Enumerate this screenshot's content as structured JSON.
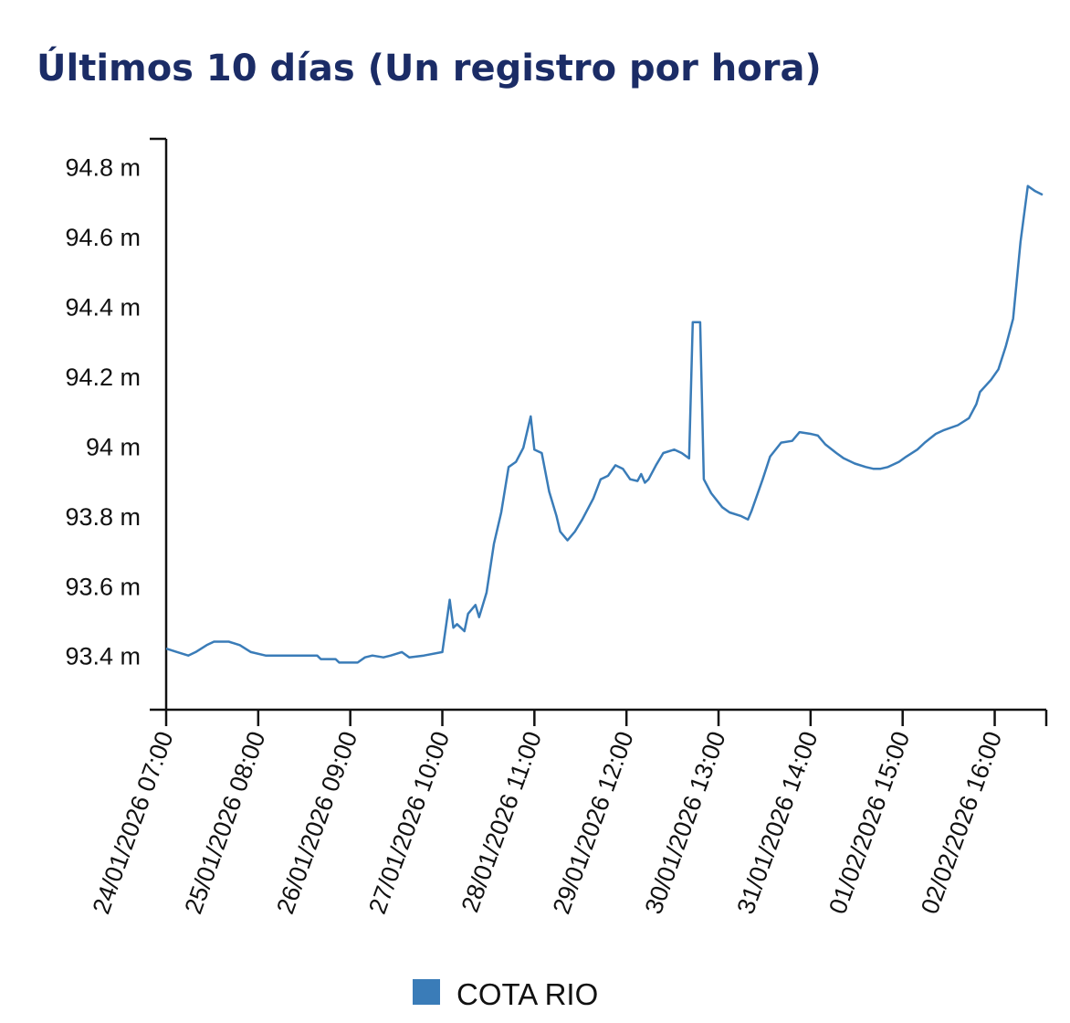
{
  "chart_data": {
    "type": "line",
    "title": "Últimos 10 días (Un registro por hora)",
    "x": [
      "24/01/2026 07:00",
      "24/01/2026 10:00",
      "24/01/2026 13:00",
      "24/01/2026 15:00",
      "24/01/2026 18:00",
      "24/01/2026 20:00",
      "25/01/2026 00:00",
      "25/01/2026 03:00",
      "25/01/2026 06:00",
      "25/01/2026 10:00",
      "25/01/2026 17:00",
      "26/01/2026 00:00",
      "26/01/2026 01:00",
      "26/01/2026 05:00",
      "26/01/2026 06:00",
      "26/01/2026 11:00",
      "26/01/2026 13:00",
      "26/01/2026 15:00",
      "26/01/2026 18:00",
      "26/01/2026 20:00",
      "26/01/2026 23:00",
      "27/01/2026 01:00",
      "27/01/2026 05:00",
      "27/01/2026 10:00",
      "27/01/2026 12:00",
      "27/01/2026 13:00",
      "27/01/2026 14:00",
      "27/01/2026 16:00",
      "27/01/2026 17:00",
      "27/01/2026 19:00",
      "27/01/2026 20:00",
      "27/01/2026 22:00",
      "28/01/2026 00:00",
      "28/01/2026 02:00",
      "28/01/2026 04:00",
      "28/01/2026 06:00",
      "28/01/2026 08:00",
      "28/01/2026 10:00",
      "28/01/2026 11:00",
      "28/01/2026 13:00",
      "28/01/2026 15:00",
      "28/01/2026 17:00",
      "28/01/2026 18:00",
      "28/01/2026 20:00",
      "28/01/2026 22:00",
      "29/01/2026 00:00",
      "29/01/2026 03:00",
      "29/01/2026 05:00",
      "29/01/2026 07:00",
      "29/01/2026 09:00",
      "29/01/2026 11:00",
      "29/01/2026 13:00",
      "29/01/2026 15:00",
      "29/01/2026 16:00",
      "29/01/2026 17:00",
      "29/01/2026 18:00",
      "29/01/2026 20:00",
      "29/01/2026 22:00",
      "30/01/2026 01:00",
      "30/01/2026 03:00",
      "30/01/2026 05:00",
      "30/01/2026 06:00",
      "30/01/2026 08:00",
      "30/01/2026 09:00",
      "30/01/2026 11:00",
      "30/01/2026 14:00",
      "30/01/2026 16:00",
      "30/01/2026 19:00",
      "30/01/2026 21:00",
      "30/01/2026 22:00",
      "31/01/2026 01:00",
      "31/01/2026 03:00",
      "31/01/2026 06:00",
      "31/01/2026 09:00",
      "31/01/2026 11:00",
      "31/01/2026 14:00",
      "31/01/2026 16:00",
      "31/01/2026 18:00",
      "31/01/2026 21:00",
      "31/01/2026 23:00",
      "01/02/2026 02:00",
      "01/02/2026 05:00",
      "01/02/2026 07:00",
      "01/02/2026 09:00",
      "01/02/2026 11:00",
      "01/02/2026 14:00",
      "01/02/2026 16:00",
      "01/02/2026 19:00",
      "01/02/2026 21:00",
      "02/02/2026 00:00",
      "02/02/2026 02:00",
      "02/02/2026 06:00",
      "02/02/2026 09:00",
      "02/02/2026 11:00",
      "02/02/2026 12:00",
      "02/02/2026 15:00",
      "02/02/2026 17:00",
      "02/02/2026 19:00",
      "02/02/2026 21:00",
      "02/02/2026 23:00",
      "03/02/2026 01:00",
      "03/02/2026 03:00",
      "03/02/2026 05:00"
    ],
    "series": [
      {
        "name": "COTA RIO",
        "color": "#3a7cb8",
        "values": [
          93.42,
          93.41,
          93.4,
          93.41,
          93.43,
          93.44,
          93.44,
          93.43,
          93.41,
          93.4,
          93.4,
          93.4,
          93.39,
          93.39,
          93.38,
          93.38,
          93.395,
          93.4,
          93.395,
          93.4,
          93.41,
          93.395,
          93.4,
          93.41,
          93.56,
          93.48,
          93.49,
          93.47,
          93.52,
          93.545,
          93.51,
          93.58,
          93.72,
          93.81,
          93.94,
          93.955,
          93.995,
          94.085,
          93.99,
          93.98,
          93.87,
          93.8,
          93.755,
          93.73,
          93.755,
          93.79,
          93.85,
          93.905,
          93.915,
          93.945,
          93.935,
          93.905,
          93.9,
          93.92,
          93.895,
          93.905,
          93.945,
          93.98,
          93.99,
          93.98,
          93.965,
          94.355,
          94.355,
          93.905,
          93.865,
          93.825,
          93.81,
          93.8,
          93.79,
          93.815,
          93.905,
          93.97,
          94.01,
          94.015,
          94.04,
          94.035,
          94.03,
          94.005,
          93.98,
          93.965,
          93.95,
          93.94,
          93.935,
          93.935,
          93.94,
          93.955,
          93.97,
          93.99,
          94.01,
          94.035,
          94.045,
          94.06,
          94.08,
          94.12,
          94.155,
          94.19,
          94.22,
          94.285,
          94.365,
          94.585,
          94.745,
          94.73,
          94.72
        ]
      }
    ],
    "xlim": [
      "24/01/2026 07:00",
      "03/02/2026 06:00"
    ],
    "xticks": [
      "24/01/2026 07:00",
      "25/01/2026 08:00",
      "26/01/2026 09:00",
      "27/01/2026 10:00",
      "28/01/2026 11:00",
      "29/01/2026 12:00",
      "30/01/2026 13:00",
      "31/01/2026 14:00",
      "01/02/2026 15:00",
      "02/02/2026 16:00"
    ],
    "ylim": [
      93.245,
      94.88
    ],
    "yticks": [
      {
        "value": 93.4,
        "label": "93.4 m"
      },
      {
        "value": 93.6,
        "label": "93.6 m"
      },
      {
        "value": 93.8,
        "label": "93.8 m"
      },
      {
        "value": 94,
        "label": "94 m"
      },
      {
        "value": 94.2,
        "label": "94.2 m"
      },
      {
        "value": 94.4,
        "label": "94.4 m"
      },
      {
        "value": 94.6,
        "label": "94.6 m"
      },
      {
        "value": 94.8,
        "label": "94.8 m"
      }
    ],
    "grid": false,
    "legend": "bottom"
  }
}
